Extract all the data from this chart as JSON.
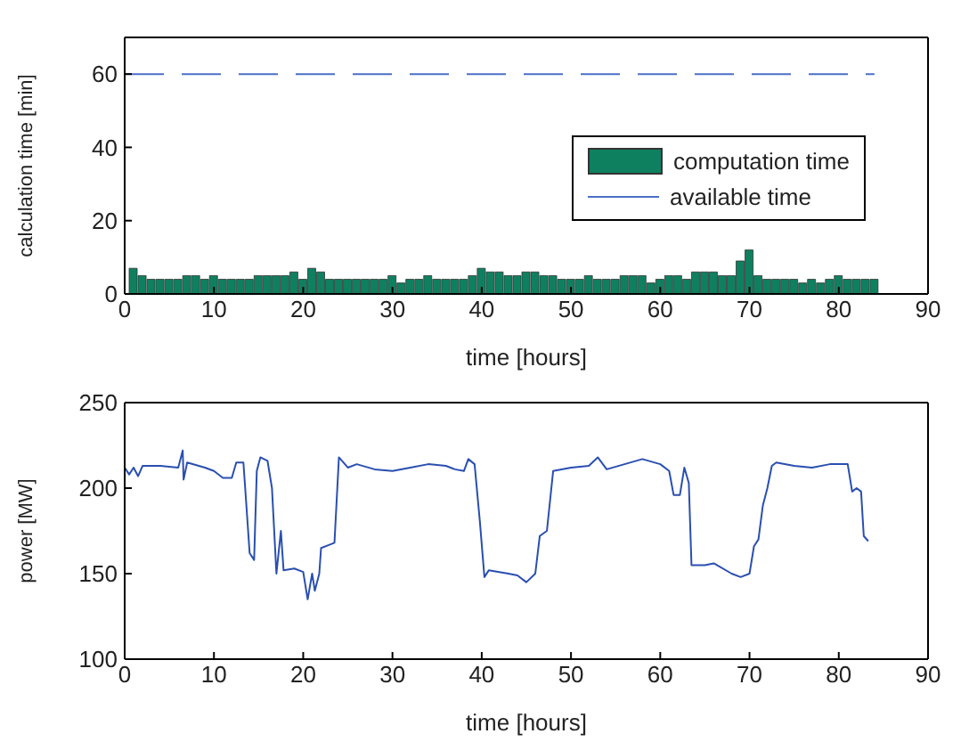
{
  "chart_data": [
    {
      "type": "bar",
      "xlabel": "time [hours]",
      "ylabel": "calculation time [min]",
      "xlim": [
        0,
        90
      ],
      "xticks": [
        0,
        10,
        20,
        30,
        40,
        50,
        60,
        70,
        80,
        90
      ],
      "ylim": [
        0,
        70
      ],
      "yticks": [
        0,
        20,
        40,
        60
      ],
      "legend": "right",
      "grid": false,
      "x": [
        1,
        2,
        3,
        4,
        5,
        6,
        7,
        8,
        9,
        10,
        11,
        12,
        13,
        14,
        15,
        16,
        17,
        18,
        19,
        20,
        21,
        22,
        23,
        24,
        25,
        26,
        27,
        28,
        29,
        30,
        31,
        32,
        33,
        34,
        35,
        36,
        37,
        38,
        39,
        40,
        41,
        42,
        43,
        44,
        45,
        46,
        47,
        48,
        49,
        50,
        51,
        52,
        53,
        54,
        55,
        56,
        57,
        58,
        59,
        60,
        61,
        62,
        63,
        64,
        65,
        66,
        67,
        68,
        69,
        70,
        71,
        72,
        73,
        74,
        75,
        76,
        77,
        78,
        79,
        80,
        81,
        82,
        83,
        84
      ],
      "series": [
        {
          "name": "computation time",
          "color": "#0e8060",
          "values": [
            7,
            5,
            4,
            4,
            4,
            4,
            5,
            5,
            4,
            5,
            4,
            4,
            4,
            4,
            5,
            5,
            5,
            5,
            6,
            4,
            7,
            6,
            4,
            4,
            4,
            4,
            4,
            4,
            4,
            5,
            3,
            4,
            4,
            5,
            4,
            4,
            4,
            4,
            5,
            7,
            6,
            6,
            5,
            5,
            6,
            6,
            5,
            5,
            4,
            4,
            4,
            5,
            4,
            4,
            4,
            5,
            5,
            5,
            3,
            4,
            5,
            5,
            4,
            6,
            6,
            6,
            5,
            5,
            9,
            12,
            5,
            4,
            4,
            4,
            4,
            3,
            4,
            3,
            4,
            5,
            4,
            4,
            4,
            4
          ]
        },
        {
          "name": "available time",
          "type": "line",
          "color": "#4a6fc8",
          "line_style": "dashed",
          "x": [
            0,
            84
          ],
          "values": [
            60,
            60
          ]
        }
      ]
    },
    {
      "type": "line",
      "xlabel": "time [hours]",
      "ylabel": "power [MW]",
      "xlim": [
        0,
        90
      ],
      "xticks": [
        0,
        10,
        20,
        30,
        40,
        50,
        60,
        70,
        80,
        90
      ],
      "ylim": [
        100,
        250
      ],
      "yticks": [
        100,
        150,
        200,
        250
      ],
      "grid": false,
      "series": [
        {
          "color": "#2a4fb0",
          "x": [
            0,
            0.5,
            1,
            1.5,
            2,
            4,
            6,
            6.5,
            6.6,
            7,
            9,
            10,
            11,
            12,
            12.5,
            13.3,
            13.5,
            14,
            14.5,
            14.8,
            15.2,
            16,
            16.5,
            17,
            17.5,
            17.8,
            19,
            20,
            20.5,
            21,
            21.3,
            21.8,
            22,
            23,
            23.5,
            24,
            25,
            26,
            28,
            30,
            32,
            34,
            36,
            37,
            38,
            38.5,
            39.2,
            39.8,
            40.3,
            40.8,
            43,
            44,
            45,
            46,
            46.5,
            47.3,
            48,
            50,
            52,
            53,
            54,
            56,
            58,
            60,
            61,
            61.5,
            62.2,
            62.7,
            63.2,
            63.5,
            65,
            66,
            68,
            69,
            70,
            70.5,
            71,
            71.5,
            72,
            72.5,
            73,
            75,
            77,
            79,
            81,
            81.5,
            82,
            82.5,
            82.8,
            83.3
          ],
          "values": [
            212,
            208,
            212,
            207,
            213,
            213,
            212,
            222,
            205,
            215,
            212,
            210,
            206,
            206,
            215,
            215,
            200,
            162,
            158,
            210,
            218,
            216,
            200,
            150,
            175,
            152,
            153,
            151,
            135,
            150,
            140,
            150,
            165,
            167,
            168,
            218,
            212,
            214,
            211,
            210,
            212,
            214,
            213,
            211,
            210,
            217,
            214,
            180,
            148,
            152,
            150,
            149,
            145,
            150,
            172,
            175,
            210,
            212,
            213,
            218,
            211,
            214,
            217,
            214,
            210,
            196,
            196,
            212,
            203,
            155,
            155,
            156,
            150,
            148,
            150,
            166,
            170,
            190,
            200,
            213,
            215,
            213,
            212,
            214,
            214,
            198,
            200,
            198,
            172,
            169
          ]
        }
      ]
    }
  ]
}
